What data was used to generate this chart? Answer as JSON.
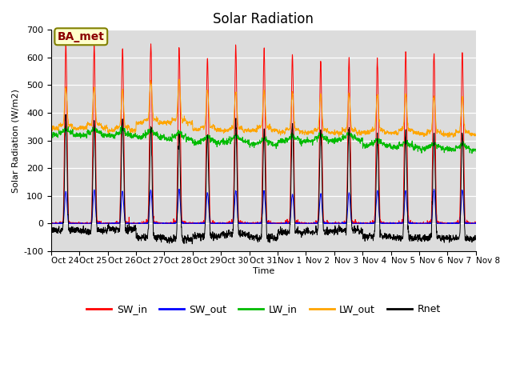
{
  "title": "Solar Radiation",
  "ylabel": "Solar Radiation (W/m2)",
  "xlabel": "Time",
  "ylim": [
    -100,
    700
  ],
  "yticks": [
    -100,
    0,
    100,
    200,
    300,
    400,
    500,
    600,
    700
  ],
  "x_tick_labels": [
    "Oct 24",
    "Oct 25",
    "Oct 26",
    "Oct 27",
    "Oct 28",
    "Oct 29",
    "Oct 30",
    "Oct 31",
    "Nov 1",
    "Nov 2",
    "Nov 3",
    "Nov 4",
    "Nov 5",
    "Nov 6",
    "Nov 7",
    "Nov 8"
  ],
  "num_days": 15,
  "annotation": "BA_met",
  "colors": {
    "SW_in": "#ff0000",
    "SW_out": "#0000ff",
    "LW_in": "#00bb00",
    "LW_out": "#ffa500",
    "Rnet": "#000000"
  },
  "background_color": "#dcdcdc",
  "title_fontsize": 12,
  "legend_fontsize": 9,
  "annotation_fontsize": 10,
  "points_per_day": 144
}
